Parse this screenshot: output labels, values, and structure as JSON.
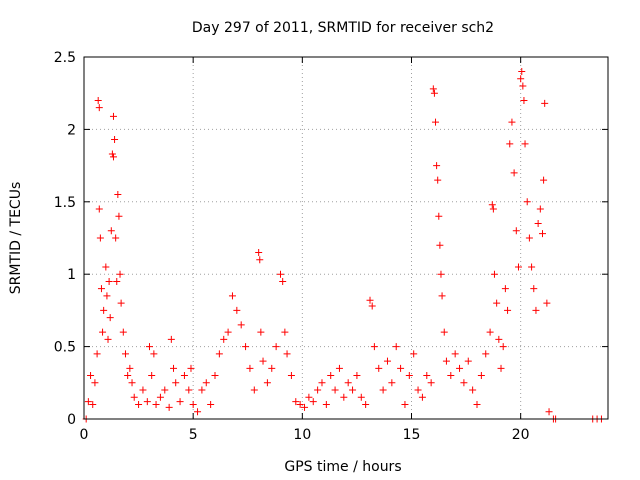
{
  "chart_data": {
    "type": "scatter",
    "title": "Day 297 of 2011, SRMTID for receiver sch2",
    "xlabel": "GPS time / hours",
    "ylabel": "SRMTID / TECUs",
    "xlim": [
      0,
      24
    ],
    "ylim": [
      0,
      2.5
    ],
    "x_ticks": [
      0,
      5,
      10,
      15,
      20
    ],
    "y_ticks": [
      0,
      0.5,
      1,
      1.5,
      2,
      2.5
    ],
    "x_tick_labels": [
      "0",
      "5",
      "10",
      "15",
      "20"
    ],
    "y_tick_labels": [
      "0",
      "0.5",
      "1",
      "1.5",
      "2",
      "2.5"
    ],
    "grid": true,
    "marker": "plus",
    "series": [
      {
        "name": "SRMTID",
        "color": "#ff0000",
        "points": [
          [
            0.1,
            0.0
          ],
          [
            0.2,
            0.12
          ],
          [
            0.3,
            0.3
          ],
          [
            0.4,
            0.1
          ],
          [
            0.5,
            0.25
          ],
          [
            0.6,
            0.45
          ],
          [
            0.65,
            2.2
          ],
          [
            0.7,
            2.15
          ],
          [
            0.7,
            1.45
          ],
          [
            0.75,
            1.25
          ],
          [
            0.8,
            0.9
          ],
          [
            0.85,
            0.6
          ],
          [
            0.9,
            0.75
          ],
          [
            1.0,
            1.05
          ],
          [
            1.05,
            0.85
          ],
          [
            1.1,
            0.55
          ],
          [
            1.15,
            0.95
          ],
          [
            1.2,
            0.7
          ],
          [
            1.25,
            1.3
          ],
          [
            1.3,
            1.83
          ],
          [
            1.35,
            1.81
          ],
          [
            1.35,
            2.09
          ],
          [
            1.4,
            1.93
          ],
          [
            1.45,
            1.25
          ],
          [
            1.5,
            0.95
          ],
          [
            1.55,
            1.55
          ],
          [
            1.6,
            1.4
          ],
          [
            1.65,
            1.0
          ],
          [
            1.7,
            0.8
          ],
          [
            1.8,
            0.6
          ],
          [
            1.9,
            0.45
          ],
          [
            2.0,
            0.3
          ],
          [
            2.1,
            0.35
          ],
          [
            2.2,
            0.25
          ],
          [
            2.3,
            0.15
          ],
          [
            2.5,
            0.1
          ],
          [
            2.7,
            0.2
          ],
          [
            2.9,
            0.12
          ],
          [
            3.0,
            0.5
          ],
          [
            3.1,
            0.3
          ],
          [
            3.2,
            0.45
          ],
          [
            3.3,
            0.1
          ],
          [
            3.5,
            0.15
          ],
          [
            3.7,
            0.2
          ],
          [
            3.9,
            0.08
          ],
          [
            4.0,
            0.55
          ],
          [
            4.1,
            0.35
          ],
          [
            4.2,
            0.25
          ],
          [
            4.4,
            0.12
          ],
          [
            4.6,
            0.3
          ],
          [
            4.8,
            0.2
          ],
          [
            4.9,
            0.35
          ],
          [
            5.0,
            0.1
          ],
          [
            5.2,
            0.05
          ],
          [
            5.4,
            0.2
          ],
          [
            5.6,
            0.25
          ],
          [
            5.8,
            0.1
          ],
          [
            6.0,
            0.3
          ],
          [
            6.2,
            0.45
          ],
          [
            6.4,
            0.55
          ],
          [
            6.6,
            0.6
          ],
          [
            6.8,
            0.85
          ],
          [
            7.0,
            0.75
          ],
          [
            7.2,
            0.65
          ],
          [
            7.4,
            0.5
          ],
          [
            7.6,
            0.35
          ],
          [
            7.8,
            0.2
          ],
          [
            8.0,
            1.15
          ],
          [
            8.05,
            1.1
          ],
          [
            8.1,
            0.6
          ],
          [
            8.2,
            0.4
          ],
          [
            8.4,
            0.25
          ],
          [
            8.6,
            0.35
          ],
          [
            8.8,
            0.5
          ],
          [
            9.0,
            1.0
          ],
          [
            9.1,
            0.95
          ],
          [
            9.2,
            0.6
          ],
          [
            9.3,
            0.45
          ],
          [
            9.5,
            0.3
          ],
          [
            9.7,
            0.12
          ],
          [
            9.9,
            0.1
          ],
          [
            10.1,
            0.08
          ],
          [
            10.3,
            0.15
          ],
          [
            10.5,
            0.12
          ],
          [
            10.7,
            0.2
          ],
          [
            10.9,
            0.25
          ],
          [
            11.1,
            0.1
          ],
          [
            11.3,
            0.3
          ],
          [
            11.5,
            0.2
          ],
          [
            11.7,
            0.35
          ],
          [
            11.9,
            0.15
          ],
          [
            12.1,
            0.25
          ],
          [
            12.3,
            0.2
          ],
          [
            12.5,
            0.3
          ],
          [
            12.7,
            0.15
          ],
          [
            12.9,
            0.1
          ],
          [
            13.1,
            0.82
          ],
          [
            13.2,
            0.78
          ],
          [
            13.3,
            0.5
          ],
          [
            13.5,
            0.35
          ],
          [
            13.7,
            0.2
          ],
          [
            13.9,
            0.4
          ],
          [
            14.1,
            0.25
          ],
          [
            14.3,
            0.5
          ],
          [
            14.5,
            0.35
          ],
          [
            14.7,
            0.1
          ],
          [
            14.9,
            0.3
          ],
          [
            15.1,
            0.45
          ],
          [
            15.3,
            0.2
          ],
          [
            15.5,
            0.15
          ],
          [
            15.7,
            0.3
          ],
          [
            15.9,
            0.25
          ],
          [
            16.0,
            2.28
          ],
          [
            16.05,
            2.25
          ],
          [
            16.1,
            2.05
          ],
          [
            16.15,
            1.75
          ],
          [
            16.2,
            1.65
          ],
          [
            16.25,
            1.4
          ],
          [
            16.3,
            1.2
          ],
          [
            16.35,
            1.0
          ],
          [
            16.4,
            0.85
          ],
          [
            16.5,
            0.6
          ],
          [
            16.6,
            0.4
          ],
          [
            16.8,
            0.3
          ],
          [
            17.0,
            0.45
          ],
          [
            17.2,
            0.35
          ],
          [
            17.4,
            0.25
          ],
          [
            17.6,
            0.4
          ],
          [
            17.8,
            0.2
          ],
          [
            18.0,
            0.1
          ],
          [
            18.2,
            0.3
          ],
          [
            18.4,
            0.45
          ],
          [
            18.6,
            0.6
          ],
          [
            18.7,
            1.48
          ],
          [
            18.75,
            1.45
          ],
          [
            18.8,
            1.0
          ],
          [
            18.9,
            0.8
          ],
          [
            19.0,
            0.55
          ],
          [
            19.1,
            0.35
          ],
          [
            19.2,
            0.5
          ],
          [
            19.3,
            0.9
          ],
          [
            19.4,
            0.75
          ],
          [
            19.5,
            1.9
          ],
          [
            19.6,
            2.05
          ],
          [
            19.7,
            1.7
          ],
          [
            19.8,
            1.3
          ],
          [
            19.9,
            1.05
          ],
          [
            20.0,
            2.35
          ],
          [
            20.05,
            2.4
          ],
          [
            20.1,
            2.3
          ],
          [
            20.15,
            2.2
          ],
          [
            20.2,
            1.9
          ],
          [
            20.3,
            1.5
          ],
          [
            20.4,
            1.25
          ],
          [
            20.5,
            1.05
          ],
          [
            20.6,
            0.9
          ],
          [
            20.7,
            0.75
          ],
          [
            20.8,
            1.35
          ],
          [
            20.9,
            1.45
          ],
          [
            21.0,
            1.28
          ],
          [
            21.05,
            1.65
          ],
          [
            21.1,
            2.18
          ],
          [
            21.2,
            0.8
          ],
          [
            21.3,
            0.05
          ],
          [
            21.5,
            0.0
          ],
          [
            21.6,
            0.0
          ],
          [
            23.3,
            0.0
          ],
          [
            23.5,
            0.0
          ],
          [
            23.7,
            0.0
          ]
        ]
      }
    ]
  }
}
